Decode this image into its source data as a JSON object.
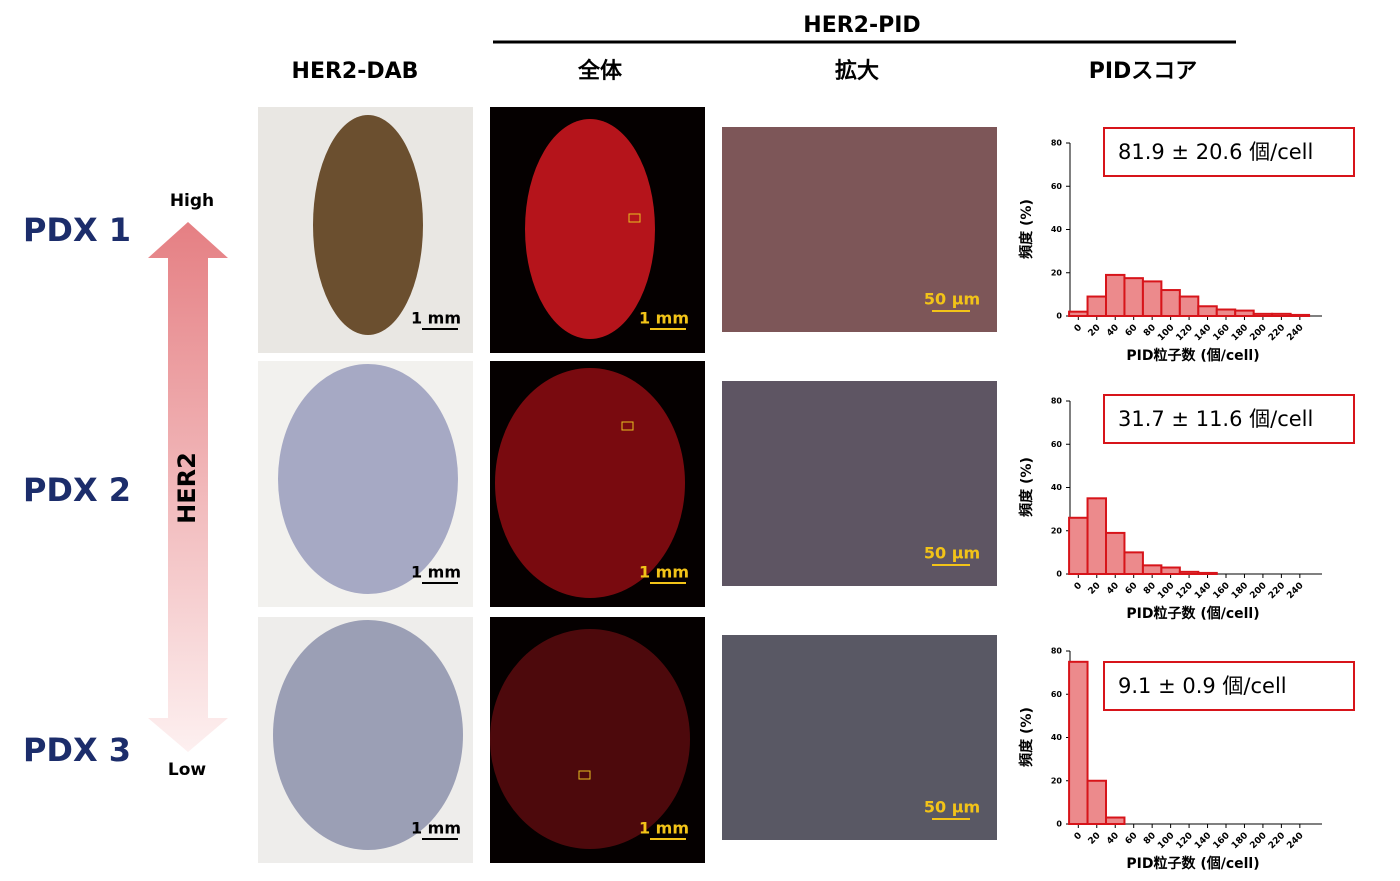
{
  "group_header": "HER2-PID",
  "column_headers": [
    "HER2-DAB",
    "全体",
    "拡大",
    "PIDスコア"
  ],
  "her2_axis": {
    "label": "HER2",
    "high": "High",
    "low": "Low"
  },
  "rows": [
    {
      "label": "PDX 1",
      "dab_scale": "1 mm",
      "pid_scale": "1 mm",
      "zoom_scale": "50 μm",
      "score": "81.9 ± 20.6 個/cell"
    },
    {
      "label": "PDX 2",
      "dab_scale": "1 mm",
      "pid_scale": "1 mm",
      "zoom_scale": "50 μm",
      "score": "31.7 ± 11.6 個/cell"
    },
    {
      "label": "PDX 3",
      "dab_scale": "1 mm",
      "pid_scale": "1 mm",
      "zoom_scale": "50 μm",
      "score": "9.1  ± 0.9 個/cell"
    }
  ],
  "chart_data": [
    {
      "type": "bar",
      "xlabel": "PID粒子数 (個/cell)",
      "ylabel": "頻度 (%)",
      "color": "#ec8a8c",
      "edge_color": "#d7141a",
      "x": [
        0,
        20,
        40,
        60,
        80,
        100,
        120,
        140,
        160,
        180,
        200,
        220,
        240
      ],
      "values": [
        2,
        9,
        19,
        17.5,
        16,
        12,
        9,
        4.5,
        3,
        2.5,
        1,
        1,
        0.5
      ],
      "xlim": [
        -9,
        264
      ],
      "xticks": [
        0,
        20,
        40,
        60,
        80,
        100,
        120,
        140,
        160,
        180,
        200,
        220,
        240
      ],
      "ylim": [
        0,
        80
      ],
      "yticks": [
        0,
        20,
        40,
        60,
        80
      ]
    },
    {
      "type": "bar",
      "xlabel": "PID粒子数 (個/cell)",
      "ylabel": "頻度 (%)",
      "color": "#ec8a8c",
      "edge_color": "#d7141a",
      "x": [
        0,
        20,
        40,
        60,
        80,
        100,
        120,
        140,
        160,
        180,
        200,
        220,
        240
      ],
      "values": [
        26,
        35,
        19,
        10,
        4,
        3,
        1,
        0.5,
        0,
        0,
        0,
        0,
        0
      ],
      "xlim": [
        -9,
        264
      ],
      "xticks": [
        0,
        20,
        40,
        60,
        80,
        100,
        120,
        140,
        160,
        180,
        200,
        220,
        240
      ],
      "ylim": [
        0,
        80
      ],
      "yticks": [
        0,
        20,
        40,
        60,
        80
      ]
    },
    {
      "type": "bar",
      "xlabel": "PID粒子数 (個/cell)",
      "ylabel": "頻度 (%)",
      "color": "#ec8a8c",
      "edge_color": "#d7141a",
      "x": [
        0,
        20,
        40,
        60,
        80,
        100,
        120,
        140,
        160,
        180,
        200,
        220,
        240
      ],
      "values": [
        75,
        20,
        3,
        0,
        0,
        0,
        0,
        0,
        0,
        0,
        0,
        0,
        0
      ],
      "xlim": [
        -9,
        264
      ],
      "xticks": [
        0,
        20,
        40,
        60,
        80,
        100,
        120,
        140,
        160,
        180,
        200,
        220,
        240
      ],
      "ylim": [
        0,
        80
      ],
      "yticks": [
        0,
        20,
        40,
        60,
        80
      ]
    }
  ]
}
